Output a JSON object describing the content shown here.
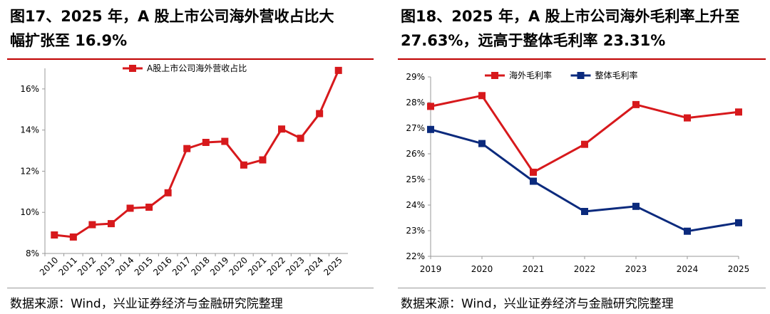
{
  "left": {
    "title_line1": "图17、2025 年，A 股上市公司海外营收占比大",
    "title_line2": "幅扩张至 16.9%",
    "source": "数据来源：Wind，兴业证券经济与金融研究院整理",
    "colors": {
      "series": "#d7191c",
      "title_rule": "#c00000"
    }
  },
  "right": {
    "title_line1": "图18、2025 年，A 股上市公司海外毛利率上升至",
    "title_line2": "27.63%，远高于整体毛利率 23.31%",
    "source": "数据来源：Wind，兴业证券经济与金融研究院整理",
    "colors": {
      "overseas": "#d7191c",
      "overall": "#0b2a7d"
    }
  },
  "chart_data": [
    {
      "type": "line",
      "x": [
        "2010",
        "2011",
        "2012",
        "2013",
        "2014",
        "2015",
        "2016",
        "2017",
        "2018",
        "2019",
        "2020",
        "2021",
        "2022",
        "2023",
        "2024",
        "2025"
      ],
      "series": [
        {
          "name": "A股上市公司海外营收占比",
          "values": [
            8.9,
            8.8,
            9.4,
            9.45,
            10.2,
            10.25,
            10.95,
            13.1,
            13.4,
            13.45,
            12.3,
            12.55,
            14.05,
            13.6,
            14.8,
            16.9
          ]
        }
      ],
      "title": "",
      "xlabel": "",
      "ylabel": "",
      "ylim": [
        8,
        17
      ],
      "yticks": [
        8,
        10,
        12,
        14,
        16
      ],
      "ytick_labels": [
        "8%",
        "10%",
        "12%",
        "14%",
        "16%"
      ],
      "x_tick_rotation": -45,
      "grid": false,
      "legend": "top"
    },
    {
      "type": "line",
      "x": [
        "2019",
        "2020",
        "2021",
        "2022",
        "2023",
        "2024",
        "2025"
      ],
      "series": [
        {
          "name": "海外毛利率",
          "values": [
            27.85,
            28.27,
            25.28,
            26.37,
            27.92,
            27.4,
            27.63
          ]
        },
        {
          "name": "整体毛利率",
          "values": [
            26.95,
            26.4,
            24.93,
            23.75,
            23.95,
            22.98,
            23.31
          ]
        }
      ],
      "title": "",
      "xlabel": "",
      "ylabel": "",
      "ylim": [
        22,
        29
      ],
      "yticks": [
        22,
        23,
        24,
        25,
        26,
        27,
        28,
        29
      ],
      "ytick_labels": [
        "22%",
        "23%",
        "24%",
        "25%",
        "26%",
        "27%",
        "28%",
        "29%"
      ],
      "grid": false,
      "legend": "top"
    }
  ]
}
